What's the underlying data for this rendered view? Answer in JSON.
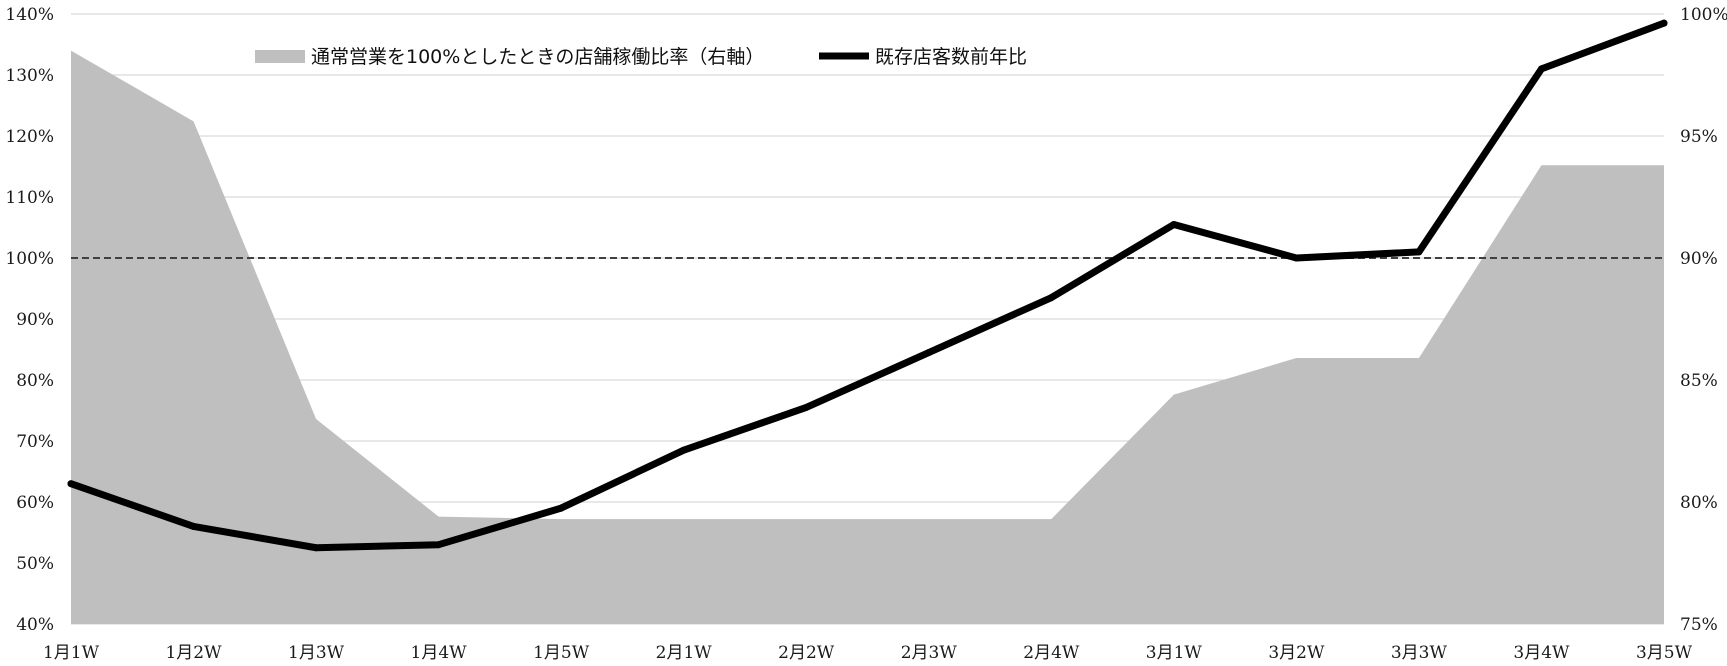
{
  "chart_data": {
    "type": "line",
    "categories": [
      "1月1W",
      "1月2W",
      "1月3W",
      "1月4W",
      "1月5W",
      "2月1W",
      "2月2W",
      "2月3W",
      "2月4W",
      "3月1W",
      "3月2W",
      "3月3W",
      "3月4W",
      "3月5W"
    ],
    "series": [
      {
        "name": "通常営業を100%としたときの店舗稼働比率（右軸）",
        "kind": "area",
        "axis": "right",
        "values": [
          98.5,
          95.6,
          83.4,
          79.4,
          79.3,
          79.3,
          79.3,
          79.3,
          79.3,
          84.4,
          85.9,
          85.9,
          93.8,
          93.8
        ]
      },
      {
        "name": "既存店客数前年比",
        "kind": "line",
        "axis": "left",
        "values": [
          63,
          56,
          52.5,
          53,
          59,
          68.5,
          75.5,
          84.5,
          93.5,
          105.5,
          100,
          101,
          131,
          138.5
        ]
      }
    ],
    "y_left": {
      "min": 40,
      "max": 140,
      "step": 10,
      "ticks": [
        "40%",
        "50%",
        "60%",
        "70%",
        "80%",
        "90%",
        "100%",
        "110%",
        "120%",
        "130%",
        "140%"
      ]
    },
    "y_right": {
      "min": 75,
      "max": 100,
      "step": 5,
      "ticks": [
        "75%",
        "80%",
        "85%",
        "90%",
        "95%",
        "100%"
      ]
    },
    "reference_line": {
      "axis": "left",
      "value": 100,
      "style": "dashed"
    },
    "grid": true,
    "legend_position": "top-left",
    "colors": {
      "area": "#bfbfbf",
      "line": "#000000",
      "grid": "#d9d9d9",
      "reference": "#404040"
    }
  }
}
